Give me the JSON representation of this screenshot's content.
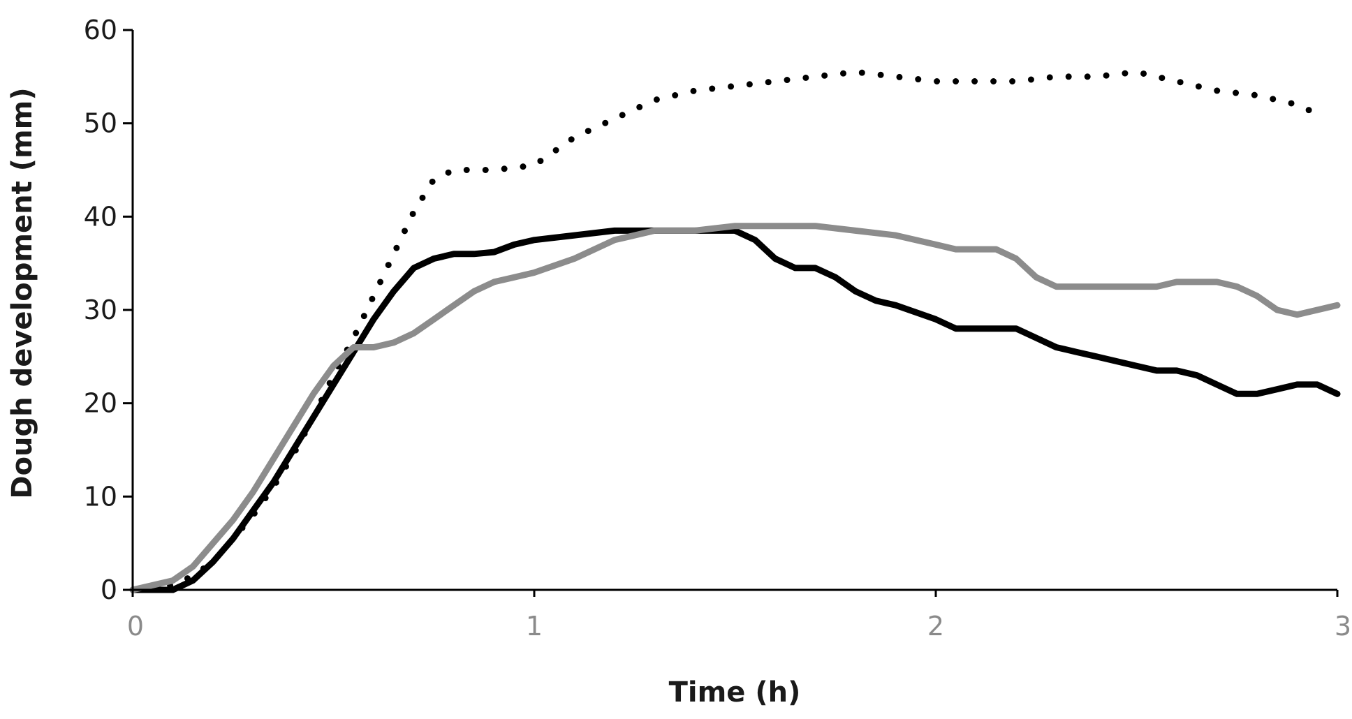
{
  "chart_data": {
    "type": "line",
    "title": "",
    "xlabel": "Time (h)",
    "ylabel": "Dough development (mm)",
    "xlim": [
      0,
      3
    ],
    "ylim": [
      0,
      60
    ],
    "xticks": [
      0,
      1,
      2,
      3
    ],
    "yticks": [
      0,
      10,
      20,
      30,
      40,
      50,
      60
    ],
    "xtick_labels": [
      "0",
      "1",
      "2",
      "3"
    ],
    "ytick_labels": [
      "0",
      "10",
      "20",
      "30",
      "40",
      "50",
      "60"
    ],
    "grid": false,
    "legend": "none",
    "series": [
      {
        "name": "dotted",
        "color": "#000000",
        "style": "dotted",
        "x": [
          0,
          0.1,
          0.15,
          0.2,
          0.25,
          0.3,
          0.35,
          0.4,
          0.45,
          0.5,
          0.55,
          0.6,
          0.65,
          0.7,
          0.75,
          0.8,
          0.9,
          1.0,
          1.05,
          1.1,
          1.15,
          1.2,
          1.3,
          1.4,
          1.5,
          1.6,
          1.7,
          1.8,
          1.9,
          2.0,
          2.1,
          2.2,
          2.3,
          2.4,
          2.5,
          2.6,
          2.7,
          2.8,
          2.9,
          2.95
        ],
        "y": [
          0,
          0.5,
          1.5,
          3,
          5.5,
          8,
          11,
          14.5,
          18.5,
          23,
          27,
          31.5,
          36,
          40.5,
          44,
          45,
          45,
          45.5,
          47,
          48.5,
          49.5,
          50.5,
          52.5,
          53.5,
          54,
          54.5,
          55,
          55.5,
          55,
          54.5,
          54.5,
          54.5,
          55,
          55,
          55.5,
          54.5,
          53.5,
          53,
          52,
          51
        ]
      },
      {
        "name": "black",
        "color": "#000000",
        "style": "solid",
        "x": [
          0,
          0.1,
          0.15,
          0.2,
          0.25,
          0.3,
          0.35,
          0.4,
          0.45,
          0.5,
          0.55,
          0.6,
          0.65,
          0.7,
          0.75,
          0.8,
          0.85,
          0.9,
          0.95,
          1.0,
          1.1,
          1.2,
          1.3,
          1.4,
          1.5,
          1.55,
          1.6,
          1.65,
          1.7,
          1.75,
          1.8,
          1.85,
          1.9,
          2.0,
          2.05,
          2.1,
          2.15,
          2.2,
          2.25,
          2.3,
          2.35,
          2.4,
          2.5,
          2.55,
          2.6,
          2.65,
          2.7,
          2.75,
          2.8,
          2.85,
          2.9,
          2.95,
          3.0
        ],
        "y": [
          0,
          0,
          1,
          3,
          5.5,
          8.5,
          11.5,
          15,
          18.5,
          22,
          25.5,
          29,
          32,
          34.5,
          35.5,
          36,
          36,
          36.2,
          37,
          37.5,
          38,
          38.5,
          38.5,
          38.5,
          38.5,
          37.5,
          35.5,
          34.5,
          34.5,
          33.5,
          32,
          31,
          30.5,
          29,
          28,
          28,
          28,
          28,
          27,
          26,
          25.5,
          25,
          24,
          23.5,
          23.5,
          23,
          22,
          21,
          21,
          21.5,
          22,
          22,
          21
        ]
      },
      {
        "name": "gray",
        "color": "#8c8c8c",
        "style": "solid",
        "x": [
          0,
          0.1,
          0.15,
          0.2,
          0.25,
          0.3,
          0.35,
          0.4,
          0.45,
          0.5,
          0.55,
          0.6,
          0.65,
          0.7,
          0.75,
          0.8,
          0.85,
          0.9,
          0.95,
          1.0,
          1.1,
          1.2,
          1.3,
          1.4,
          1.5,
          1.6,
          1.7,
          1.8,
          1.9,
          2.0,
          2.05,
          2.1,
          2.15,
          2.2,
          2.25,
          2.3,
          2.35,
          2.4,
          2.5,
          2.55,
          2.6,
          2.65,
          2.7,
          2.75,
          2.8,
          2.85,
          2.9,
          2.95,
          3.0
        ],
        "y": [
          0,
          1,
          2.5,
          5,
          7.5,
          10.5,
          14,
          17.5,
          21,
          24,
          26,
          26,
          26.5,
          27.5,
          29,
          30.5,
          32,
          33,
          33.5,
          34,
          35.5,
          37.5,
          38.5,
          38.5,
          39,
          39,
          39,
          38.5,
          38,
          37,
          36.5,
          36.5,
          36.5,
          35.5,
          33.5,
          32.5,
          32.5,
          32.5,
          32.5,
          32.5,
          33,
          33,
          33,
          32.5,
          31.5,
          30,
          29.5,
          30,
          30.5
        ]
      }
    ]
  }
}
